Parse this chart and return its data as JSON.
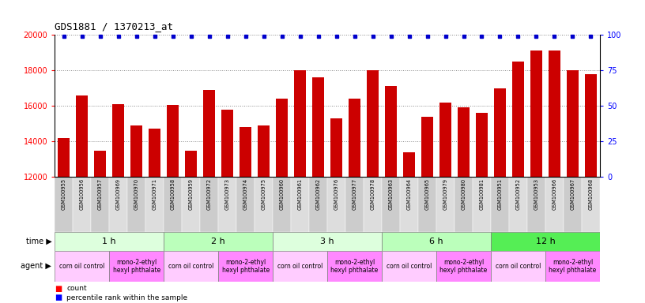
{
  "title": "GDS1881 / 1370213_at",
  "samples": [
    "GSM100955",
    "GSM100956",
    "GSM100957",
    "GSM100969",
    "GSM100970",
    "GSM100971",
    "GSM100958",
    "GSM100959",
    "GSM100972",
    "GSM100973",
    "GSM100974",
    "GSM100975",
    "GSM100960",
    "GSM100961",
    "GSM100962",
    "GSM100976",
    "GSM100977",
    "GSM100978",
    "GSM100963",
    "GSM100964",
    "GSM100965",
    "GSM100979",
    "GSM100980",
    "GSM100981",
    "GSM100951",
    "GSM100952",
    "GSM100953",
    "GSM100966",
    "GSM100967",
    "GSM100968"
  ],
  "counts": [
    14200,
    16600,
    13500,
    16100,
    14900,
    14700,
    16050,
    13500,
    16900,
    15800,
    14800,
    14900,
    16400,
    18000,
    17600,
    15300,
    16400,
    18000,
    17100,
    13400,
    15400,
    16200,
    15900,
    15600,
    17000,
    18500,
    19100,
    19100,
    18000,
    17800
  ],
  "time_groups": [
    {
      "label": "1 h",
      "start": 0,
      "end": 6,
      "color": "#ddffdd"
    },
    {
      "label": "2 h",
      "start": 6,
      "end": 12,
      "color": "#bbffbb"
    },
    {
      "label": "3 h",
      "start": 12,
      "end": 18,
      "color": "#ddffdd"
    },
    {
      "label": "6 h",
      "start": 18,
      "end": 24,
      "color": "#bbffbb"
    },
    {
      "label": "12 h",
      "start": 24,
      "end": 30,
      "color": "#55ee55"
    }
  ],
  "agent_groups": [
    {
      "label": "corn oil control",
      "start": 0,
      "end": 3,
      "color": "#ffccff"
    },
    {
      "label": "mono-2-ethyl\nhexyl phthalate",
      "start": 3,
      "end": 6,
      "color": "#ff88ff"
    },
    {
      "label": "corn oil control",
      "start": 6,
      "end": 9,
      "color": "#ffccff"
    },
    {
      "label": "mono-2-ethyl\nhexyl phthalate",
      "start": 9,
      "end": 12,
      "color": "#ff88ff"
    },
    {
      "label": "corn oil control",
      "start": 12,
      "end": 15,
      "color": "#ffccff"
    },
    {
      "label": "mono-2-ethyl\nhexyl phthalate",
      "start": 15,
      "end": 18,
      "color": "#ff88ff"
    },
    {
      "label": "corn oil control",
      "start": 18,
      "end": 21,
      "color": "#ffccff"
    },
    {
      "label": "mono-2-ethyl\nhexyl phthalate",
      "start": 21,
      "end": 24,
      "color": "#ff88ff"
    },
    {
      "label": "corn oil control",
      "start": 24,
      "end": 27,
      "color": "#ffccff"
    },
    {
      "label": "mono-2-ethyl\nhexyl phthalate",
      "start": 27,
      "end": 30,
      "color": "#ff88ff"
    }
  ],
  "bar_color": "#cc0000",
  "percentile_color": "#0000cc",
  "ylim_left": [
    12000,
    20000
  ],
  "ylim_right": [
    0,
    100
  ],
  "yticks_left": [
    12000,
    14000,
    16000,
    18000,
    20000
  ],
  "yticks_right": [
    0,
    25,
    50,
    75,
    100
  ],
  "sample_box_color": "#cccccc",
  "bar_width": 0.65
}
